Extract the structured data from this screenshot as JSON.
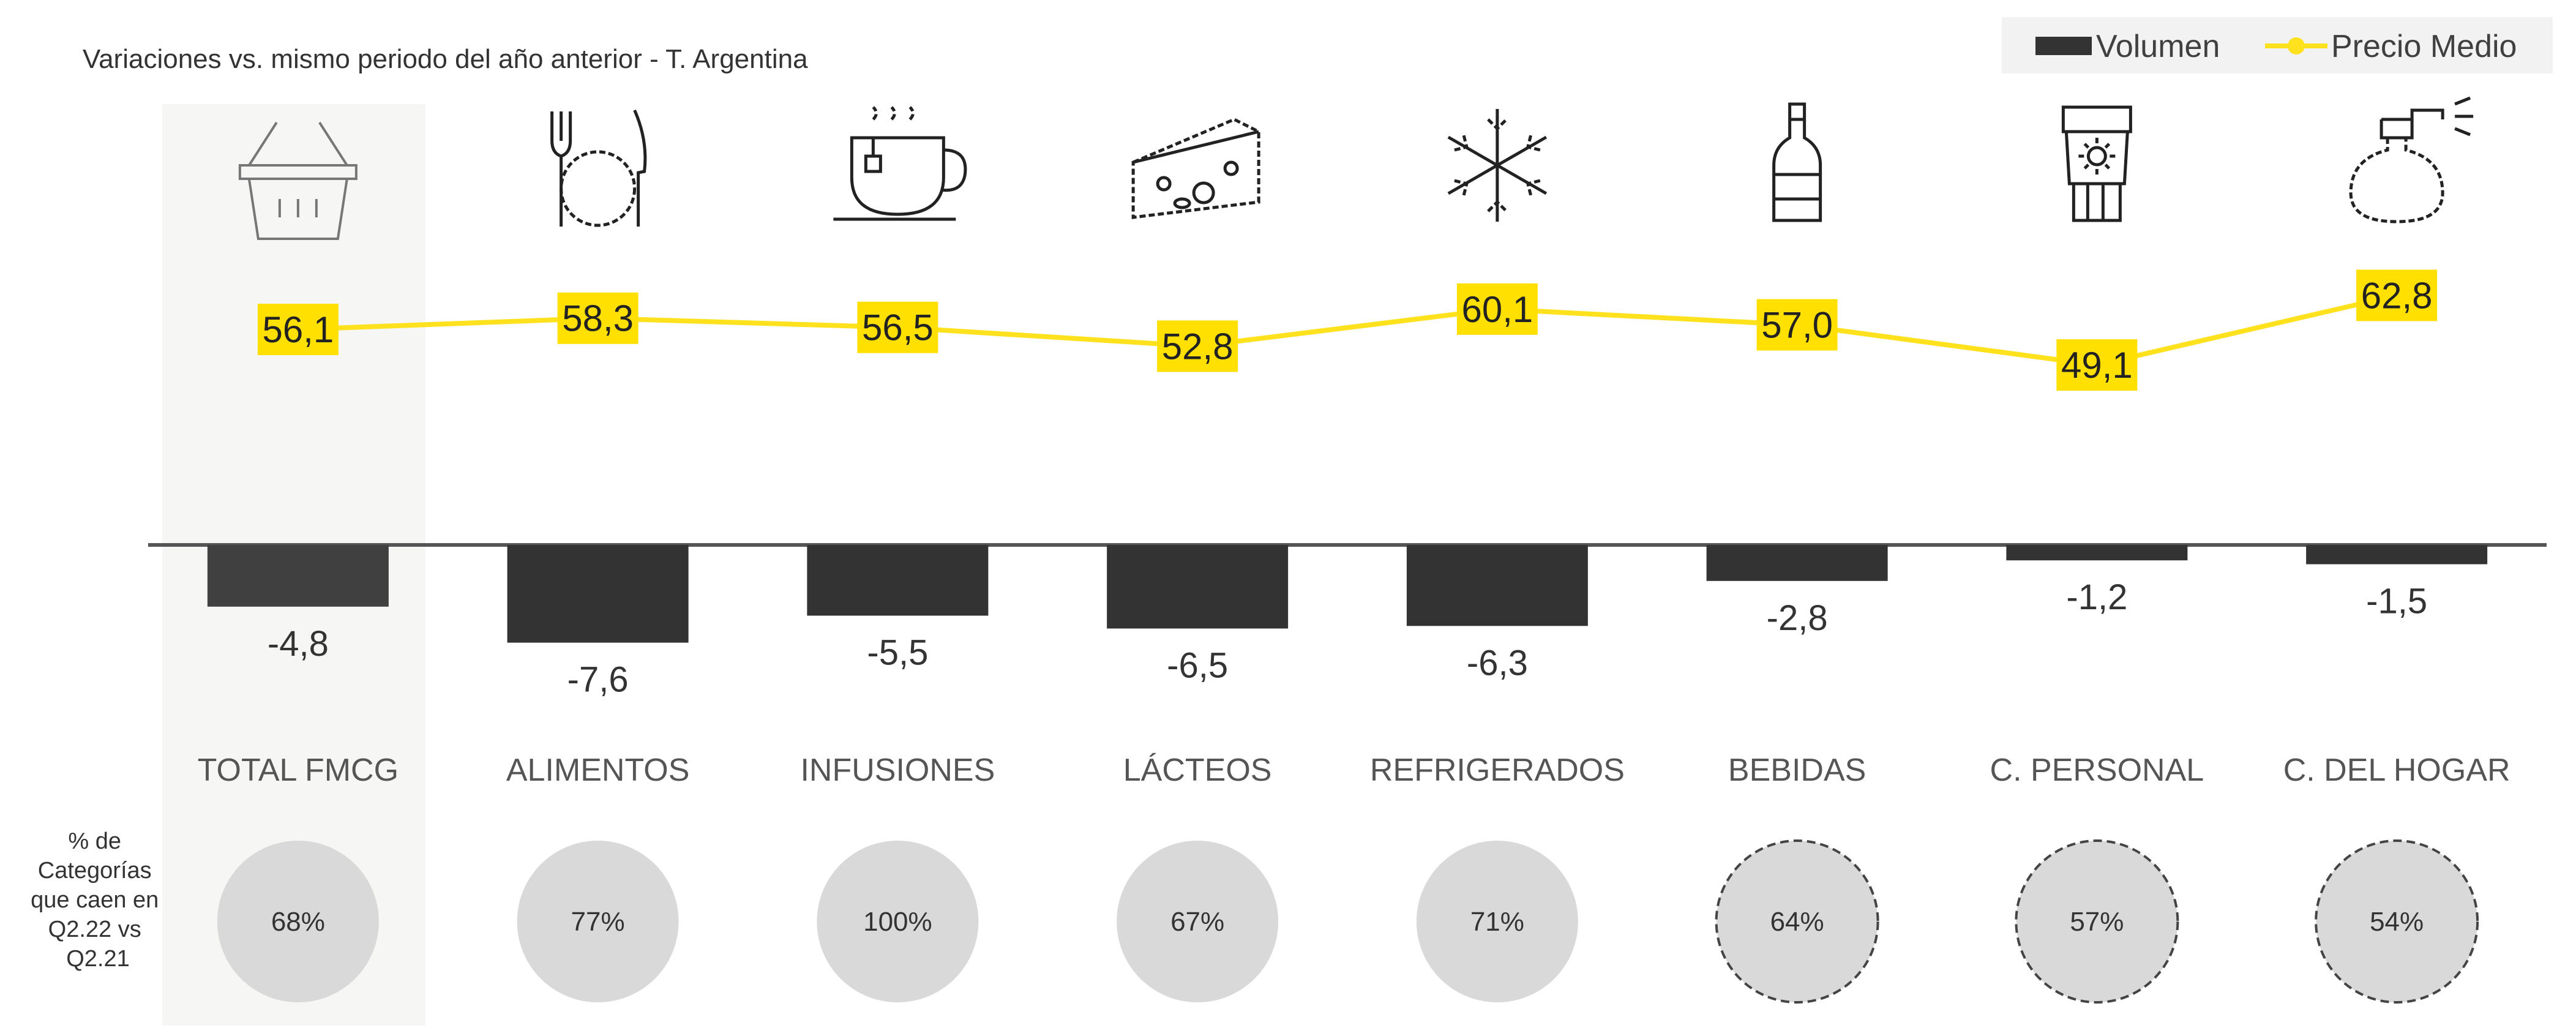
{
  "title": "Variaciones vs. mismo periodo del año anterior - T. Argentina",
  "side_label": [
    "% de",
    "Categorías",
    "que caen en",
    "Q2.22 vs",
    "Q2.21"
  ],
  "colors": {
    "bar": "#333333",
    "bar_highlight": "#404040",
    "line": "#FFE11E",
    "label_bg": "#FFE000",
    "circle": "#D9D9D9",
    "highlight_bg": "#F6F6F4"
  },
  "chart_data": {
    "type": "bar",
    "categories": [
      "TOTAL FMCG",
      "ALIMENTOS",
      "INFUSIONES",
      "LÁCTEOS",
      "REFRIGERADOS",
      "BEBIDAS",
      "C. PERSONAL",
      "C. DEL HOGAR"
    ],
    "icons": [
      "basket-icon",
      "cutlery-icon",
      "teacup-icon",
      "cheese-icon",
      "snowflake-icon",
      "bottle-icon",
      "cream-jar-icon",
      "spray-bottle-icon"
    ],
    "series": [
      {
        "name": "Volumen",
        "type": "bar",
        "values": [
          -4.8,
          -7.6,
          -5.5,
          -6.5,
          -6.3,
          -2.8,
          -1.2,
          -1.5
        ],
        "labels": [
          "-4,8",
          "-7,6",
          "-5,5",
          "-6,5",
          "-6,3",
          "-2,8",
          "-1,2",
          "-1,5"
        ]
      },
      {
        "name": "Precio Medio",
        "type": "line",
        "values": [
          56.1,
          58.3,
          56.5,
          52.8,
          60.1,
          57.0,
          49.1,
          62.8
        ],
        "labels": [
          "56,1",
          "58,3",
          "56,5",
          "52,8",
          "60,1",
          "57,0",
          "49,1",
          "62,8"
        ]
      }
    ],
    "categories_falling_pct": [
      "68%",
      "77%",
      "100%",
      "67%",
      "71%",
      "64%",
      "57%",
      "54%"
    ],
    "circle_style": [
      "solid",
      "solid",
      "solid",
      "solid",
      "solid",
      "dashed",
      "dashed",
      "dashed"
    ],
    "legend": {
      "position": "top-right",
      "entries": [
        "Volumen",
        "Precio Medio"
      ]
    },
    "highlight_category": "TOTAL FMCG",
    "grid": false
  }
}
